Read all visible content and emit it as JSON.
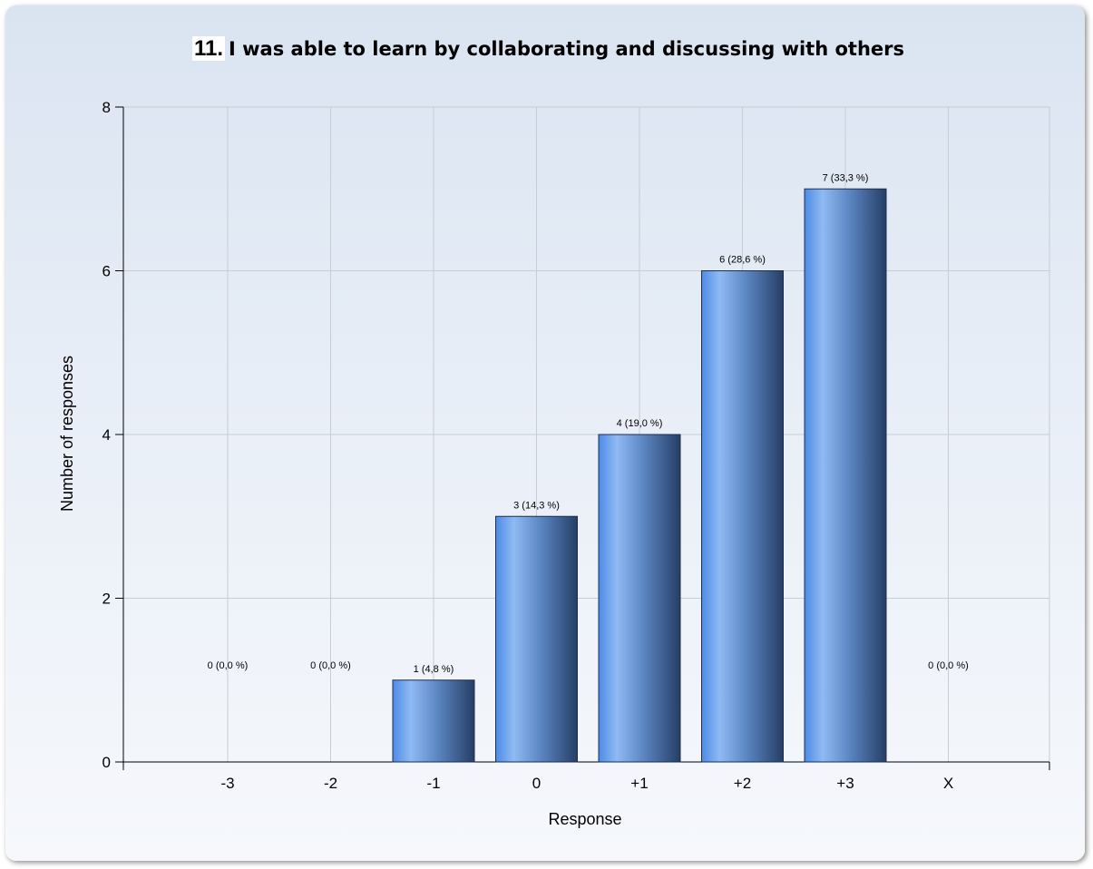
{
  "chart_data": {
    "type": "bar",
    "title_number": "11.",
    "title": "I was able to learn by collaborating and discussing with others",
    "categories": [
      "-3",
      "-2",
      "-1",
      "0",
      "+1",
      "+2",
      "+3",
      "X"
    ],
    "values": [
      0,
      0,
      1,
      3,
      4,
      6,
      7,
      0
    ],
    "data_labels": [
      "0 (0,0 %)",
      "0 (0,0 %)",
      "1 (4,8 %)",
      "3 (14,3 %)",
      "4 (19,0 %)",
      "6 (28,6 %)",
      "7 (33,3 %)",
      "0 (0,0 %)"
    ],
    "xlabel": "Response",
    "ylabel": "Number of responses",
    "ylim": [
      0,
      8
    ],
    "yticks": [
      0,
      2,
      4,
      6,
      8
    ],
    "grid": true,
    "bar_colors": {
      "light": "#8fbaf3",
      "mid": "#5a95e8",
      "dark": "#263e66"
    }
  }
}
